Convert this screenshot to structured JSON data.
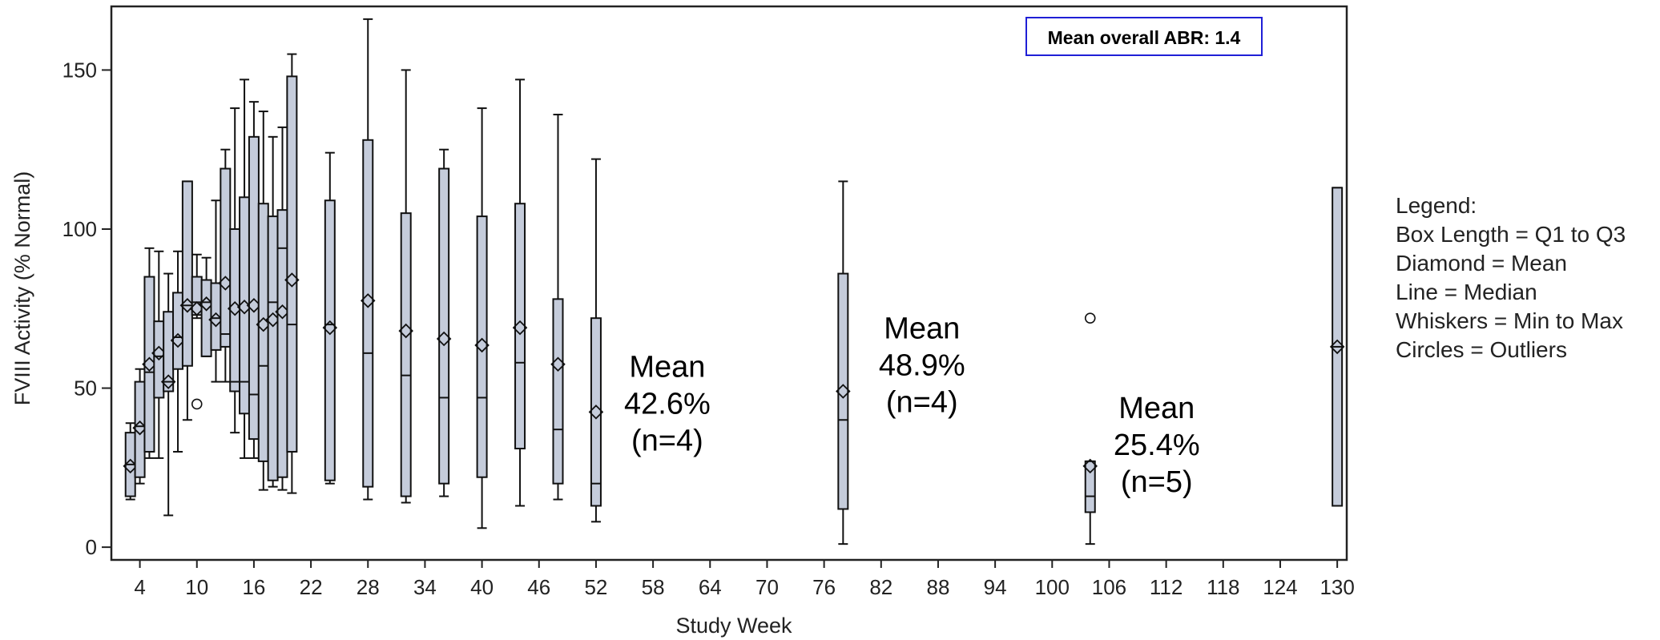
{
  "chart_data": {
    "type": "box",
    "xlabel": "Study Week",
    "ylabel": "FVIII Activity (% Normal)",
    "xlim": [
      1,
      131
    ],
    "ylim": [
      -4,
      170
    ],
    "x_ticks": [
      4,
      10,
      16,
      22,
      28,
      34,
      40,
      46,
      52,
      58,
      64,
      70,
      76,
      82,
      88,
      94,
      100,
      106,
      112,
      118,
      124,
      130
    ],
    "y_ticks": [
      0,
      50,
      100,
      150
    ],
    "box_fill": "#c5ccdb",
    "mean_abr_label": "Mean overall ABR: 1.4",
    "legend": {
      "title": "Legend:",
      "items": [
        "Box Length = Q1 to Q3",
        "Diamond = Mean",
        "Line = Median",
        "Whiskers = Min to Max",
        "Circles = Outliers"
      ]
    },
    "annotations": [
      {
        "x": 59.5,
        "y": 42,
        "lines": [
          "Mean",
          "42.6%",
          "(n=4)"
        ]
      },
      {
        "x": 86.3,
        "y": 54,
        "lines": [
          "Mean",
          "48.9%",
          "(n=4)"
        ]
      },
      {
        "x": 111,
        "y": 29,
        "lines": [
          "Mean",
          "25.4%",
          "(n=5)"
        ]
      }
    ],
    "boxes": [
      {
        "week": 3,
        "min": 15,
        "q1": 16,
        "median": 26,
        "q3": 36,
        "max": 39,
        "mean": 25.5,
        "outliers": []
      },
      {
        "week": 4,
        "min": 20,
        "q1": 22,
        "median": 38,
        "q3": 52,
        "max": 56,
        "mean": 37.5,
        "outliers": []
      },
      {
        "week": 5,
        "min": 28,
        "q1": 30,
        "median": 55,
        "q3": 85,
        "max": 94,
        "mean": 57.5,
        "outliers": []
      },
      {
        "week": 6,
        "min": 28,
        "q1": 47,
        "median": 60,
        "q3": 71,
        "max": 93,
        "mean": 61,
        "outliers": []
      },
      {
        "week": 7,
        "min": 10,
        "q1": 49,
        "median": 52,
        "q3": 74,
        "max": 86,
        "mean": 52,
        "outliers": []
      },
      {
        "week": 8,
        "min": 30,
        "q1": 56,
        "median": 66,
        "q3": 80,
        "max": 93,
        "mean": 65,
        "outliers": []
      },
      {
        "week": 9,
        "min": 40,
        "q1": 57,
        "median": 76,
        "q3": 115,
        "max": 115,
        "mean": 76,
        "outliers": []
      },
      {
        "week": 10,
        "min": 72,
        "q1": 73,
        "median": 77,
        "q3": 85,
        "max": 92,
        "mean": 75,
        "outliers": [
          45
        ]
      },
      {
        "week": 11,
        "min": 60,
        "q1": 60,
        "median": 77,
        "q3": 84,
        "max": 91,
        "mean": 76.5,
        "outliers": []
      },
      {
        "week": 12,
        "min": 52,
        "q1": 62,
        "median": 72,
        "q3": 83,
        "max": 109,
        "mean": 71.5,
        "outliers": []
      },
      {
        "week": 13,
        "min": 52,
        "q1": 63,
        "median": 67,
        "q3": 119,
        "max": 125,
        "mean": 83,
        "outliers": []
      },
      {
        "week": 14,
        "min": 36,
        "q1": 49,
        "median": 52,
        "q3": 100,
        "max": 138,
        "mean": 75,
        "outliers": []
      },
      {
        "week": 15,
        "min": 28,
        "q1": 42,
        "median": 52,
        "q3": 110,
        "max": 147,
        "mean": 75.5,
        "outliers": []
      },
      {
        "week": 16,
        "min": 28,
        "q1": 34,
        "median": 48,
        "q3": 129,
        "max": 140,
        "mean": 76,
        "outliers": []
      },
      {
        "week": 17,
        "min": 18,
        "q1": 27,
        "median": 57,
        "q3": 108,
        "max": 137,
        "mean": 70,
        "outliers": []
      },
      {
        "week": 18,
        "min": 19,
        "q1": 21,
        "median": 77,
        "q3": 104,
        "max": 129,
        "mean": 71.5,
        "outliers": []
      },
      {
        "week": 19,
        "min": 18,
        "q1": 22,
        "median": 94,
        "q3": 106,
        "max": 132,
        "mean": 74,
        "outliers": []
      },
      {
        "week": 20,
        "min": 17,
        "q1": 30,
        "median": 70,
        "q3": 148,
        "max": 155,
        "mean": 84,
        "outliers": []
      },
      {
        "week": 24,
        "min": 20,
        "q1": 21,
        "median": 70,
        "q3": 109,
        "max": 124,
        "mean": 69,
        "outliers": []
      },
      {
        "week": 28,
        "min": 15,
        "q1": 19,
        "median": 61,
        "q3": 128,
        "max": 166,
        "mean": 77.5,
        "outliers": []
      },
      {
        "week": 32,
        "min": 14,
        "q1": 16,
        "median": 54,
        "q3": 105,
        "max": 150,
        "mean": 68,
        "outliers": []
      },
      {
        "week": 36,
        "min": 16,
        "q1": 20,
        "median": 47,
        "q3": 119,
        "max": 125,
        "mean": 65.5,
        "outliers": []
      },
      {
        "week": 40,
        "min": 6,
        "q1": 22,
        "median": 47,
        "q3": 104,
        "max": 138,
        "mean": 63.5,
        "outliers": []
      },
      {
        "week": 44,
        "min": 13,
        "q1": 31,
        "median": 58,
        "q3": 108,
        "max": 147,
        "mean": 69,
        "outliers": []
      },
      {
        "week": 48,
        "min": 15,
        "q1": 20,
        "median": 37,
        "q3": 78,
        "max": 136,
        "mean": 57.5,
        "outliers": []
      },
      {
        "week": 52,
        "min": 8,
        "q1": 13,
        "median": 20,
        "q3": 72,
        "max": 122,
        "mean": 42.5,
        "outliers": []
      },
      {
        "week": 78,
        "min": 1,
        "q1": 12,
        "median": 40,
        "q3": 86,
        "max": 115,
        "mean": 49,
        "outliers": []
      },
      {
        "week": 104,
        "min": 1,
        "q1": 11,
        "median": 16,
        "q3": 27,
        "max": 27,
        "mean": 25.5,
        "outliers": [
          72
        ]
      },
      {
        "week": 130,
        "min": 13,
        "q1": 13,
        "median": 63,
        "q3": 113,
        "max": 113,
        "mean": 63,
        "outliers": []
      }
    ]
  }
}
